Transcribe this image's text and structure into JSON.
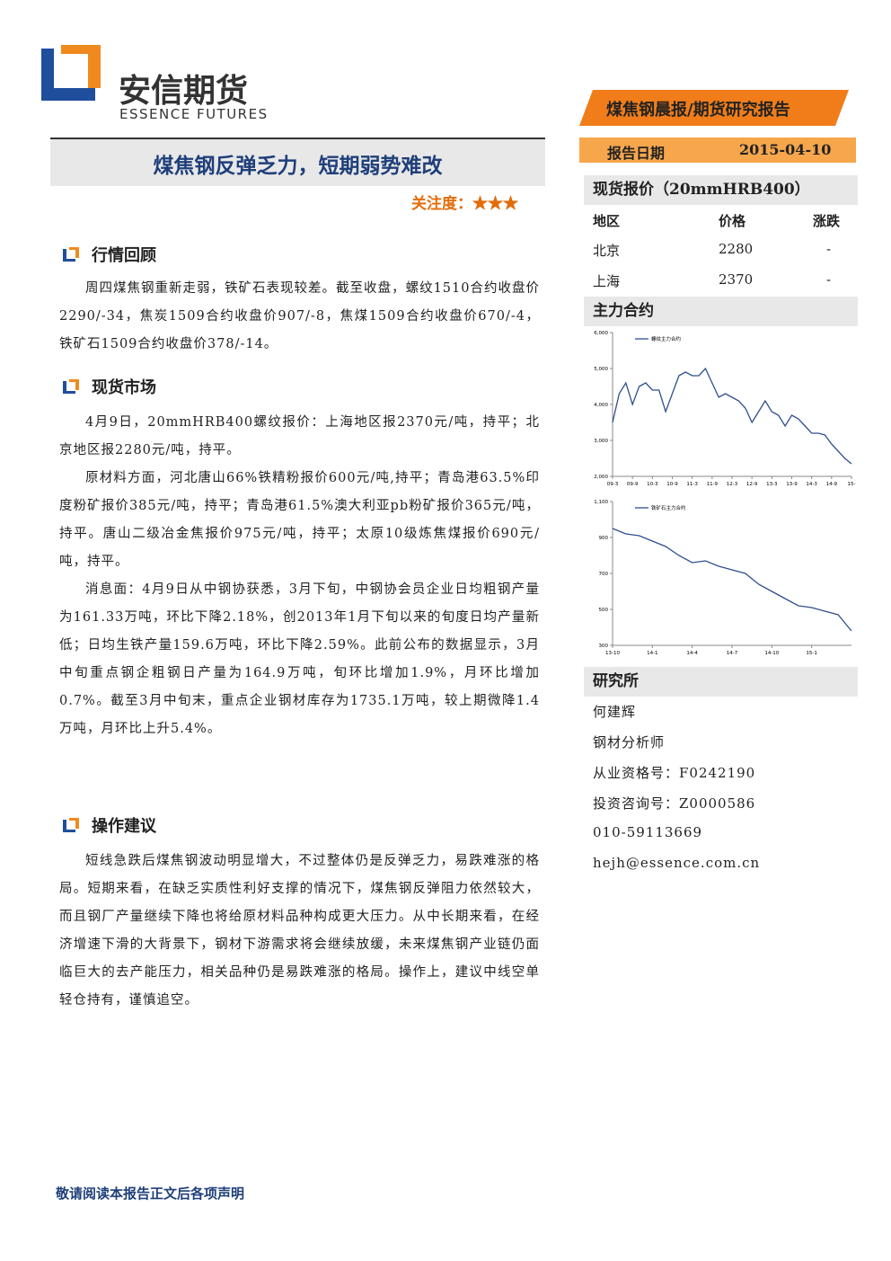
{
  "header": {
    "logo_cn": "安信期货",
    "logo_en": "ESSENCE FUTURES",
    "report_type": "煤焦钢晨报/期货研究报告",
    "date_label": "报告日期",
    "date": "2015-04-10"
  },
  "title": "煤焦钢反弹乏力，短期弱势难改",
  "attention": "关注度：★★★",
  "sections": [
    {
      "heading": "行情回顾",
      "paragraphs": [
        "周四煤焦钢重新走弱，铁矿石表现较差。截至收盘，螺纹1510合约收盘价2290/-34，焦炭1509合约收盘价907/-8，焦煤1509合约收盘价670/-4，铁矿石1509合约收盘价378/-14。"
      ]
    },
    {
      "heading": "现货市场",
      "paragraphs": [
        "4月9日，20mmHRB400螺纹报价：上海地区报2370元/吨，持平；北京地区报2280元/吨，持平。",
        "原材料方面，河北唐山66%铁精粉报价600元/吨,持平；青岛港63.5%印度粉矿报价385元/吨，持平；青岛港61.5%澳大利亚pb粉矿报价365元/吨，持平。唐山二级冶金焦报价975元/吨，持平；太原10级炼焦煤报价690元/吨，持平。",
        "消息面：4月9日从中钢协获悉，3月下旬，中钢协会员企业日均粗钢产量为161.33万吨，环比下降2.18%，创2013年1月下旬以来的旬度日均产量新低；日均生铁产量159.6万吨，环比下降2.59%。此前公布的数据显示，3月中旬重点钢企粗钢日产量为164.9万吨，旬环比增加1.9%，月环比增加0.7%。截至3月中旬末，重点企业钢材库存为1735.1万吨，较上期微降1.4万吨，月环比上升5.4%。"
      ]
    },
    {
      "heading": "操作建议",
      "paragraphs": [
        "短线急跌后煤焦钢波动明显增大，不过整体仍是反弹乏力，易跌难涨的格局。短期来看，在缺乏实质性利好支撑的情况下，煤焦钢反弹阻力依然较大，而且钢厂产量继续下降也将给原材料品种构成更大压力。从中长期来看，在经济增速下滑的大背景下，钢材下游需求将会继续放缓，未来煤焦钢产业链仍面临巨大的去产能压力，相关品种仍是易跌难涨的格局。操作上，建议中线空单轻仓持有，谨慎追空。"
      ]
    }
  ],
  "spot": {
    "title": "现货报价（20mmHRB400）",
    "headers": [
      "地区",
      "价格",
      "涨跌"
    ],
    "rows": [
      [
        "北京",
        "2280",
        "-"
      ],
      [
        "上海",
        "2370",
        "-"
      ]
    ]
  },
  "contracts_title": "主力合约",
  "charts": [
    {
      "type": "line",
      "categories": [
        "09-3",
        null,
        null,
        "09-9",
        null,
        null,
        "10-3",
        null,
        null,
        "10-9",
        null,
        null,
        "11-3",
        null,
        null,
        "11-9",
        null,
        null,
        "12-3",
        null,
        null,
        "12-9",
        null,
        null,
        "13-3",
        null,
        null,
        "13-9",
        null,
        null,
        "14-3",
        null,
        null,
        "14-9",
        null,
        null,
        "15-"
      ],
      "series": [
        {
          "name": "螺纹主力合约",
          "color": "#2f4f8f",
          "values": [
            3500,
            4300,
            4600,
            4000,
            4500,
            4600,
            4400,
            4400,
            3800,
            4300,
            4800,
            4900,
            4800,
            4800,
            5000,
            4600,
            4200,
            4300,
            4200,
            4100,
            3900,
            3500,
            3800,
            4100,
            3800,
            3700,
            3400,
            3700,
            3600,
            3400,
            3200,
            3200,
            3150,
            2900,
            2700,
            2500,
            2350
          ]
        }
      ],
      "ylim": [
        2000,
        6000
      ],
      "yticks": [
        {
          "value": 2000,
          "label": "2,000"
        },
        {
          "value": 3000,
          "label": "3,000"
        },
        {
          "value": 4000,
          "label": "4,000"
        },
        {
          "value": 5000,
          "label": "5,000"
        },
        {
          "value": 6000,
          "label": "6,000"
        }
      ]
    },
    {
      "type": "line",
      "categories": [
        "13-10",
        null,
        null,
        "14-1",
        null,
        null,
        "14-4",
        null,
        null,
        "14-7",
        null,
        null,
        "14-10",
        null,
        null,
        "15-1",
        null,
        null,
        null
      ],
      "series": [
        {
          "name": "铁矿石主力合约",
          "color": "#2f4f8f",
          "values": [
            950,
            920,
            910,
            880,
            850,
            800,
            760,
            770,
            740,
            720,
            700,
            640,
            600,
            560,
            520,
            510,
            490,
            470,
            380
          ]
        }
      ],
      "ylim": [
        300,
        1100
      ],
      "yticks": [
        300,
        500,
        700,
        900,
        {
          "value": 1100,
          "label": "1,100"
        }
      ]
    }
  ],
  "research": {
    "title": "研究所",
    "lines": [
      "何建辉",
      "钢材分析师",
      "从业资格号：F0242190",
      "投资咨询号：Z0000586",
      "010-59113669",
      "hejh@essence.com.cn"
    ]
  },
  "footer": "敬请阅读本报告正文后各项声明"
}
